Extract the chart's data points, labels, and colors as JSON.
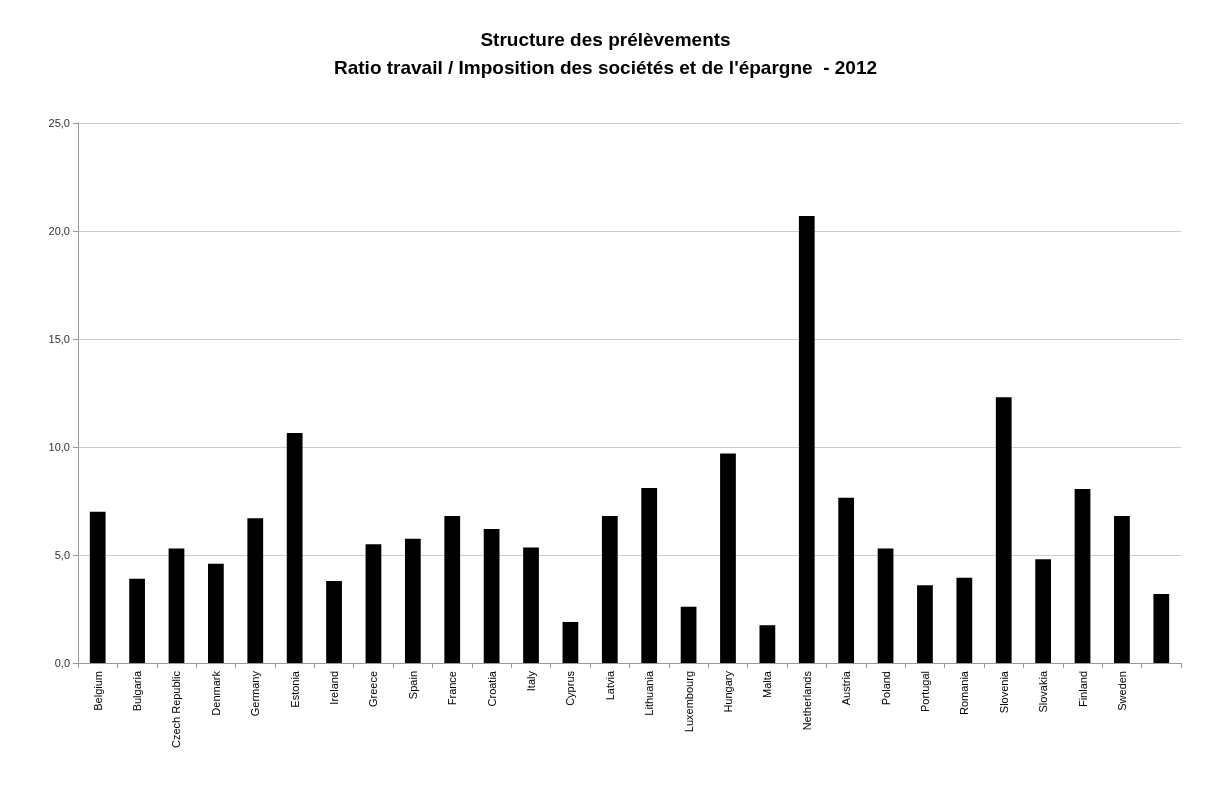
{
  "chart_data": {
    "type": "bar",
    "title": "Structure des prélèvements\nRatio travail / Imposition des sociétés et de l'épargne  - 2012",
    "categories": [
      "Belgium",
      "Bulgaria",
      "Czech Republic",
      "Denmark",
      "Germany",
      "Estonia",
      "Ireland",
      "Greece",
      "Spain",
      "France",
      "Croatia",
      "Italy",
      "Cyprus",
      "Latvia",
      "Lithuania",
      "Luxembourg",
      "Hungary",
      "Malta",
      "Netherlands",
      "Austria",
      "Poland",
      "Portugal",
      "Romania",
      "Slovenia",
      "Slovakia",
      "Finland",
      "Sweden",
      null
    ],
    "values": [
      7.0,
      3.9,
      5.3,
      4.6,
      6.7,
      10.65,
      3.8,
      5.5,
      5.75,
      6.8,
      6.2,
      5.35,
      1.9,
      6.8,
      8.1,
      2.6,
      9.7,
      1.75,
      20.7,
      7.65,
      5.3,
      3.6,
      3.95,
      12.3,
      4.8,
      8.05,
      6.8,
      3.2
    ],
    "color": "#000000",
    "ylim": [
      0,
      25
    ],
    "yticks": [
      {
        "value": 0,
        "label": "0,0"
      },
      {
        "value": 5,
        "label": "5,0"
      },
      {
        "value": 10,
        "label": "10,0"
      },
      {
        "value": 15,
        "label": "15,0"
      },
      {
        "value": 20,
        "label": "20,0"
      },
      {
        "value": 25,
        "label": "25,0"
      }
    ],
    "grid": "y"
  }
}
